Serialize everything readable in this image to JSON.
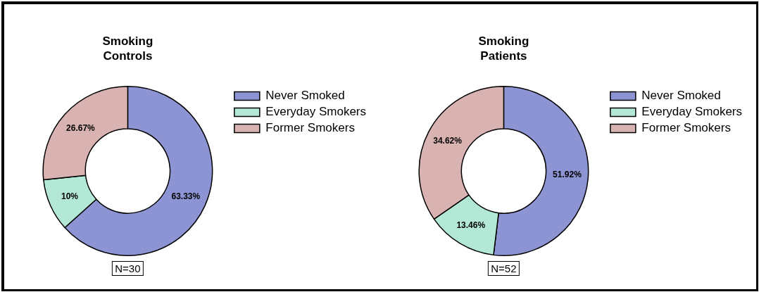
{
  "chart_data": [
    {
      "type": "donut",
      "title": "Smoking Controls",
      "categories": [
        "Never Smoked",
        "Everyday Smokers",
        "Former Smokers"
      ],
      "values": [
        63.33,
        10,
        26.67
      ],
      "value_labels": [
        "63.33%",
        "10%",
        "26.67%"
      ],
      "colors": [
        "#8c94d4",
        "#b4e8d6",
        "#d9b3b1"
      ],
      "legend": "right",
      "annotations": [
        "N=30"
      ]
    },
    {
      "type": "donut",
      "title": "Smoking Patients",
      "categories": [
        "Never Smoked",
        "Everyday Smokers",
        "Former Smokers"
      ],
      "values": [
        51.92,
        13.46,
        34.62
      ],
      "value_labels": [
        "51.92%",
        "13.46%",
        "34.62%"
      ],
      "colors": [
        "#8c94d4",
        "#b4e8d6",
        "#d9b3b1"
      ],
      "legend": "right",
      "annotations": [
        "N=52"
      ]
    }
  ]
}
